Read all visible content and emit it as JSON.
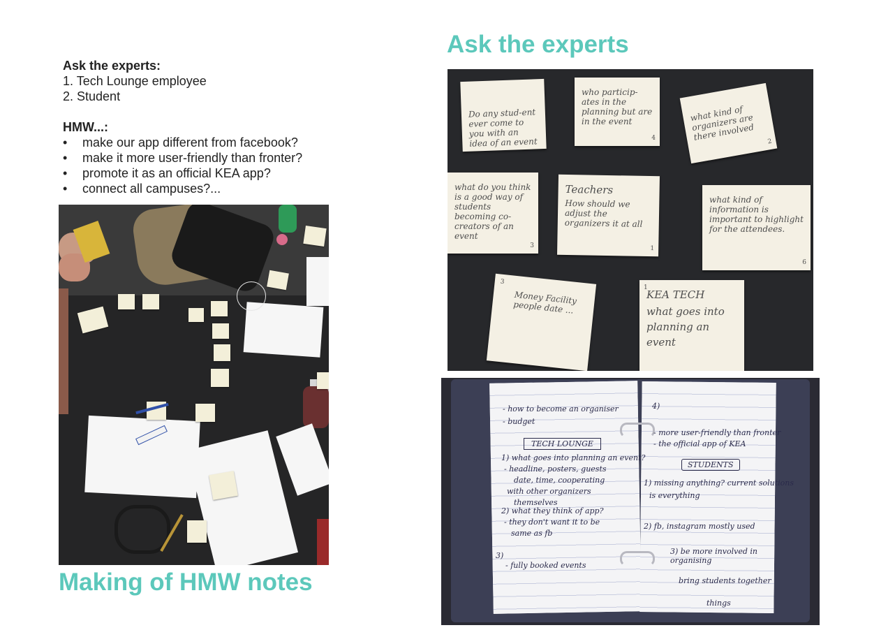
{
  "left_notes": {
    "ask_heading": "Ask the experts:",
    "ask_items": [
      "1. Tech Lounge employee",
      "2. Student"
    ],
    "hmw_heading": "HMW...:",
    "hmw_items": [
      "make our app different from facebook?",
      "make it more user-friendly than fronter?",
      "promote it as an official KEA app?",
      "connect all campuses?..."
    ]
  },
  "captions": {
    "right_title": "Ask the experts",
    "left_caption": "Making of HMW notes"
  },
  "sticky_notes": [
    {
      "text": "Do any stud-ent ever come to you with an idea of an event",
      "number": ""
    },
    {
      "text": "who particip-ates in the planning but are in the event",
      "number": "4"
    },
    {
      "text": "what kind of organizers are there involved",
      "number": "2"
    },
    {
      "text": "what do you think is a good way of students becoming co-creators of an event",
      "number": "3"
    },
    {
      "title": "Teachers",
      "text": "How should we adjust the organizers it at all",
      "number": "1"
    },
    {
      "text": "what kind of information is important to highlight for the attendees.",
      "number": "6"
    },
    {
      "text": "Money Facility people date ...",
      "number": "3"
    },
    {
      "title": "KEA TECH",
      "text": "what goes into planning an event",
      "number": "1"
    }
  ],
  "notebook": {
    "left_lines": [
      "- how to become an organiser",
      "- budget",
      "TECH LOUNGE",
      "1) what goes into planning an event?",
      "- headline, posters, guests",
      "date, time, cooperating",
      "with other organizers",
      "themselves",
      "2) what they think of app?",
      "- they don't want it to be",
      "same as fb",
      "3)",
      "- fully booked events"
    ],
    "right_lines": [
      "4)",
      "- more user-friendly than fronter",
      "- the official app of KEA",
      "STUDENTS",
      "1) missing anything? current solutions",
      "is everything",
      "2) fb, instagram mostly used",
      "3) be more involved in organising",
      "bring students together",
      "things"
    ]
  },
  "colors": {
    "accent": "#5cc8bb",
    "text": "#222222"
  }
}
